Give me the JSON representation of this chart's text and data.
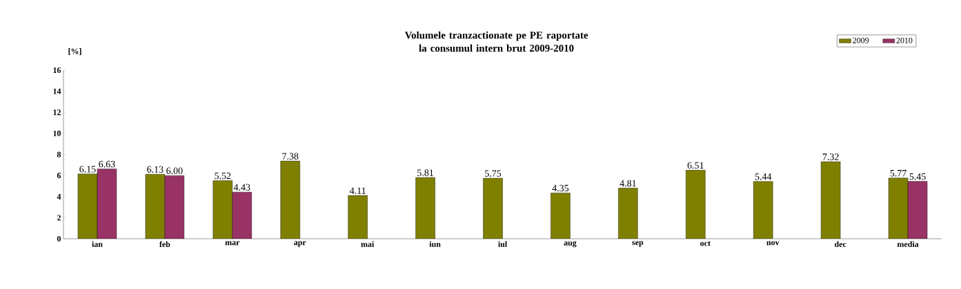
{
  "chart_data": {
    "type": "bar",
    "title": "Volumele tranzactionate pe PE raportate la consumul intern brut 2009-2010",
    "ylabel": "[%]",
    "categories": [
      "ian",
      "feb",
      "mar",
      "apr",
      "mai",
      "iun",
      "iul",
      "aug",
      "sep",
      "oct",
      "nov",
      "dec",
      "media"
    ],
    "series": [
      {
        "name": "2009",
        "color": "#808000",
        "values": [
          6.15,
          6.13,
          5.52,
          7.38,
          4.11,
          5.81,
          5.75,
          4.35,
          4.81,
          6.51,
          5.44,
          7.32,
          5.77
        ],
        "value_labels": [
          "6.15",
          "6.13",
          "5.52",
          "7.38",
          "4.11",
          "5.81",
          "5.75",
          "4.35",
          "4.81",
          "6.51",
          "5.44",
          "7.32",
          "5.77"
        ]
      },
      {
        "name": "2010",
        "color": "#993366",
        "values": [
          6.63,
          6.0,
          4.43,
          null,
          null,
          null,
          null,
          null,
          null,
          null,
          null,
          null,
          5.45
        ],
        "value_labels": [
          "6.63",
          "6.00",
          "4.43",
          null,
          null,
          null,
          null,
          null,
          null,
          null,
          null,
          null,
          "5.45"
        ]
      }
    ],
    "ylim": [
      0,
      16
    ],
    "yticks": [
      0,
      2,
      4,
      6,
      8,
      10,
      12,
      14,
      16
    ],
    "grid": false,
    "legend": "top right"
  }
}
